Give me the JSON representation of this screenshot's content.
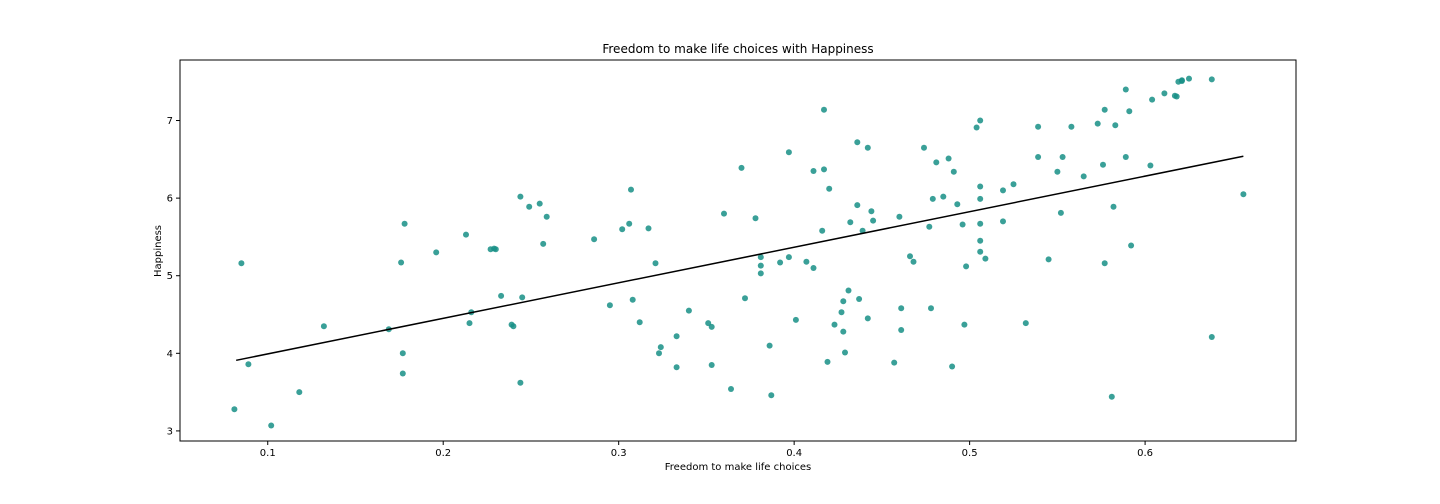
{
  "chart_data": {
    "type": "scatter",
    "title": "Freedom to make life choices with Happiness",
    "xlabel": "Freedom to make life choices",
    "ylabel": "Happiness",
    "xlim": [
      0.05,
      0.686
    ],
    "ylim": [
      2.87,
      7.78
    ],
    "x_ticks": [
      0.1,
      0.2,
      0.3,
      0.4,
      0.5,
      0.6
    ],
    "x_tick_labels": [
      "0.1",
      "0.2",
      "0.3",
      "0.4",
      "0.5",
      "0.6"
    ],
    "y_ticks": [
      3,
      4,
      5,
      6,
      7
    ],
    "y_tick_labels": [
      "3",
      "4",
      "5",
      "6",
      "7"
    ],
    "grid": false,
    "point_color": "#178f86",
    "line_color": "#000000",
    "regression_line": {
      "x": [
        0.082,
        0.656
      ],
      "y": [
        3.91,
        6.54
      ]
    },
    "points": [
      [
        0.081,
        3.28
      ],
      [
        0.085,
        5.16
      ],
      [
        0.089,
        3.86
      ],
      [
        0.102,
        3.07
      ],
      [
        0.118,
        3.5
      ],
      [
        0.132,
        4.35
      ],
      [
        0.169,
        4.31
      ],
      [
        0.176,
        5.17
      ],
      [
        0.177,
        4.0
      ],
      [
        0.177,
        3.74
      ],
      [
        0.178,
        5.67
      ],
      [
        0.196,
        5.3
      ],
      [
        0.213,
        5.53
      ],
      [
        0.215,
        4.39
      ],
      [
        0.216,
        4.53
      ],
      [
        0.227,
        5.34
      ],
      [
        0.229,
        5.35
      ],
      [
        0.23,
        5.34
      ],
      [
        0.233,
        4.74
      ],
      [
        0.239,
        4.37
      ],
      [
        0.24,
        4.35
      ],
      [
        0.244,
        6.02
      ],
      [
        0.244,
        3.62
      ],
      [
        0.245,
        4.72
      ],
      [
        0.249,
        5.89
      ],
      [
        0.255,
        5.93
      ],
      [
        0.257,
        5.41
      ],
      [
        0.259,
        5.76
      ],
      [
        0.286,
        5.47
      ],
      [
        0.295,
        4.62
      ],
      [
        0.302,
        5.6
      ],
      [
        0.306,
        5.67
      ],
      [
        0.307,
        6.11
      ],
      [
        0.308,
        4.69
      ],
      [
        0.312,
        4.4
      ],
      [
        0.317,
        5.61
      ],
      [
        0.321,
        5.16
      ],
      [
        0.323,
        4.0
      ],
      [
        0.324,
        4.08
      ],
      [
        0.333,
        4.22
      ],
      [
        0.333,
        3.82
      ],
      [
        0.34,
        4.55
      ],
      [
        0.351,
        4.39
      ],
      [
        0.353,
        4.34
      ],
      [
        0.353,
        3.85
      ],
      [
        0.36,
        5.8
      ],
      [
        0.364,
        3.54
      ],
      [
        0.37,
        6.39
      ],
      [
        0.372,
        4.71
      ],
      [
        0.378,
        5.74
      ],
      [
        0.381,
        5.24
      ],
      [
        0.381,
        5.13
      ],
      [
        0.381,
        5.03
      ],
      [
        0.386,
        4.1
      ],
      [
        0.387,
        3.46
      ],
      [
        0.392,
        5.17
      ],
      [
        0.397,
        6.59
      ],
      [
        0.397,
        5.24
      ],
      [
        0.401,
        4.43
      ],
      [
        0.407,
        5.18
      ],
      [
        0.411,
        5.1
      ],
      [
        0.411,
        6.35
      ],
      [
        0.416,
        5.58
      ],
      [
        0.417,
        7.14
      ],
      [
        0.417,
        6.37
      ],
      [
        0.419,
        3.89
      ],
      [
        0.42,
        6.12
      ],
      [
        0.423,
        4.37
      ],
      [
        0.427,
        4.53
      ],
      [
        0.428,
        4.67
      ],
      [
        0.428,
        4.28
      ],
      [
        0.429,
        4.01
      ],
      [
        0.431,
        4.81
      ],
      [
        0.432,
        5.69
      ],
      [
        0.436,
        6.72
      ],
      [
        0.436,
        5.91
      ],
      [
        0.437,
        4.7
      ],
      [
        0.439,
        5.58
      ],
      [
        0.442,
        6.65
      ],
      [
        0.442,
        4.45
      ],
      [
        0.444,
        5.83
      ],
      [
        0.445,
        5.71
      ],
      [
        0.457,
        3.88
      ],
      [
        0.46,
        5.76
      ],
      [
        0.461,
        4.3
      ],
      [
        0.461,
        4.58
      ],
      [
        0.466,
        5.25
      ],
      [
        0.468,
        5.18
      ],
      [
        0.474,
        6.65
      ],
      [
        0.477,
        5.63
      ],
      [
        0.478,
        4.58
      ],
      [
        0.479,
        5.99
      ],
      [
        0.481,
        6.46
      ],
      [
        0.485,
        6.02
      ],
      [
        0.488,
        6.51
      ],
      [
        0.49,
        3.83
      ],
      [
        0.491,
        6.34
      ],
      [
        0.493,
        5.92
      ],
      [
        0.496,
        5.66
      ],
      [
        0.497,
        4.37
      ],
      [
        0.498,
        5.12
      ],
      [
        0.504,
        6.91
      ],
      [
        0.506,
        7.0
      ],
      [
        0.506,
        6.15
      ],
      [
        0.506,
        5.99
      ],
      [
        0.506,
        5.67
      ],
      [
        0.506,
        5.45
      ],
      [
        0.506,
        5.31
      ],
      [
        0.509,
        5.22
      ],
      [
        0.519,
        5.7
      ],
      [
        0.519,
        6.1
      ],
      [
        0.525,
        6.18
      ],
      [
        0.532,
        4.39
      ],
      [
        0.539,
        6.92
      ],
      [
        0.539,
        6.53
      ],
      [
        0.545,
        5.21
      ],
      [
        0.55,
        6.34
      ],
      [
        0.552,
        5.81
      ],
      [
        0.553,
        6.53
      ],
      [
        0.558,
        6.92
      ],
      [
        0.565,
        6.28
      ],
      [
        0.573,
        6.96
      ],
      [
        0.576,
        6.43
      ],
      [
        0.577,
        7.14
      ],
      [
        0.577,
        5.16
      ],
      [
        0.581,
        3.44
      ],
      [
        0.582,
        5.89
      ],
      [
        0.583,
        6.94
      ],
      [
        0.589,
        7.4
      ],
      [
        0.589,
        6.53
      ],
      [
        0.591,
        7.12
      ],
      [
        0.592,
        5.39
      ],
      [
        0.603,
        6.42
      ],
      [
        0.604,
        7.27
      ],
      [
        0.611,
        7.35
      ],
      [
        0.617,
        7.32
      ],
      [
        0.618,
        7.31
      ],
      [
        0.619,
        7.5
      ],
      [
        0.621,
        7.52
      ],
      [
        0.621,
        7.51
      ],
      [
        0.625,
        7.54
      ],
      [
        0.638,
        7.53
      ],
      [
        0.638,
        4.21
      ],
      [
        0.656,
        6.05
      ]
    ]
  }
}
